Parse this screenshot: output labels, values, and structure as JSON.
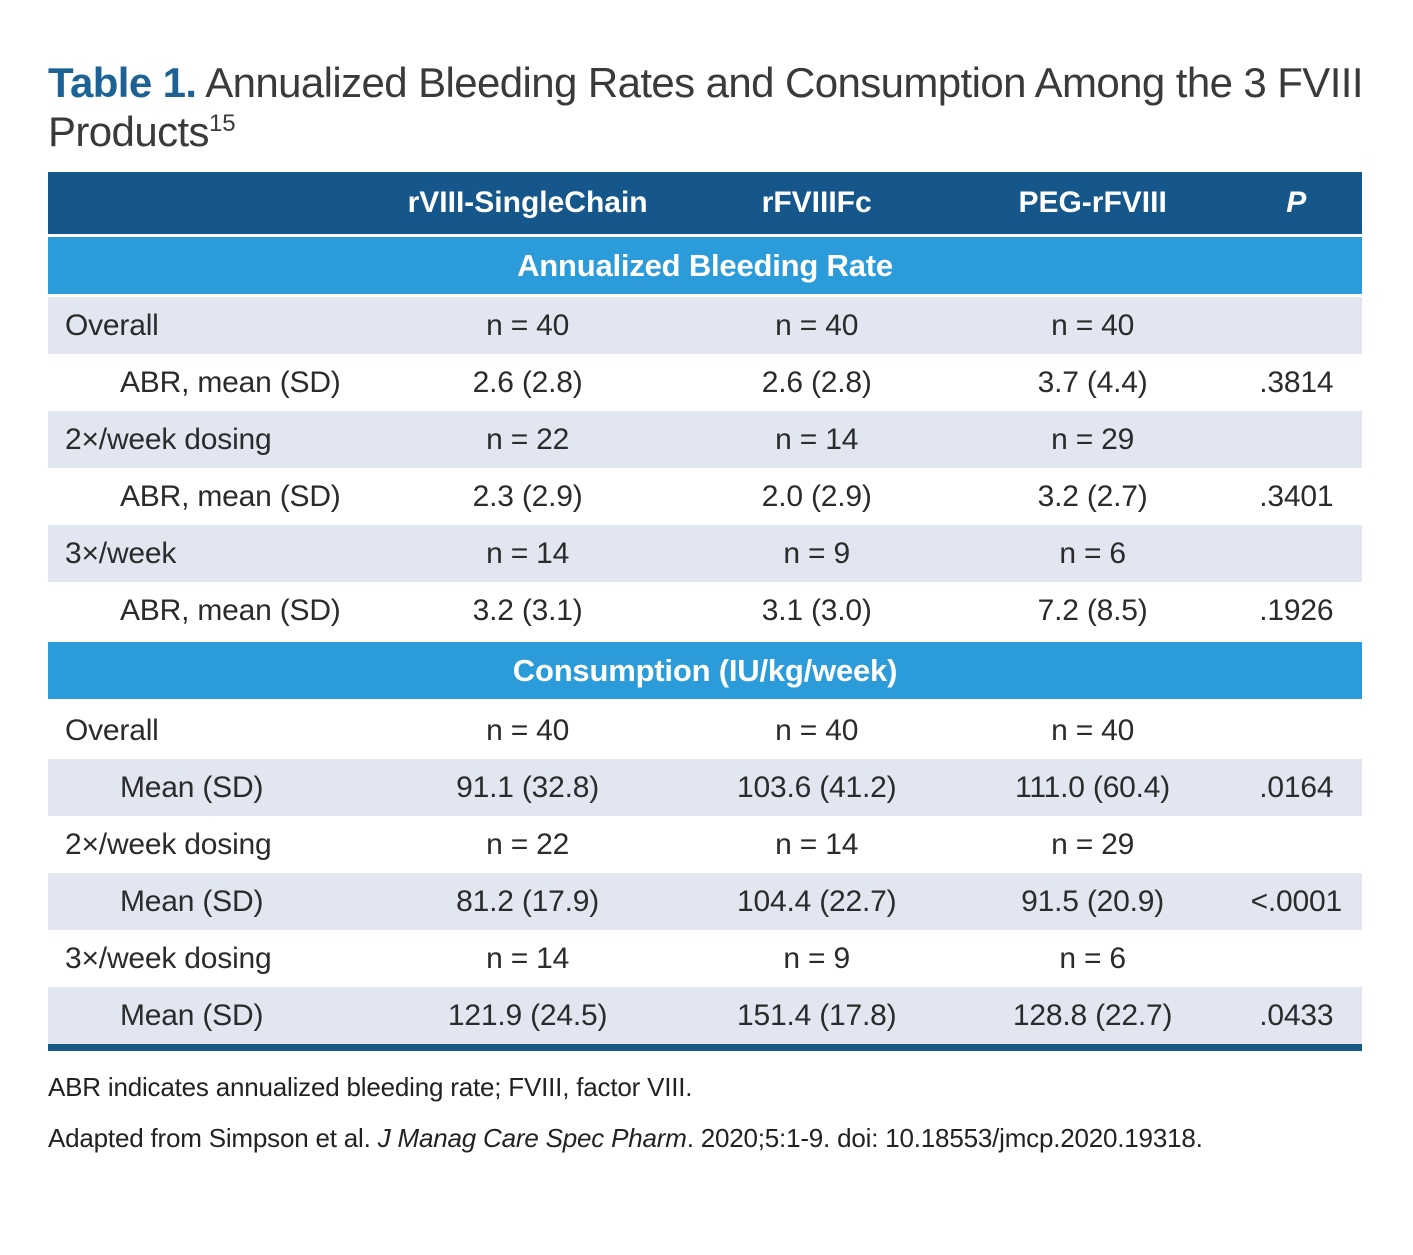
{
  "title": {
    "label": "Table 1.",
    "text": " Annualized Bleeding Rates and Consumption Among the 3 FVIII Products",
    "reference": "15"
  },
  "table": {
    "columns": [
      "",
      "rVIII-SingleChain",
      "rFVIIIFc",
      "PEG-rFVIII",
      "P"
    ],
    "sections": [
      {
        "header": "Annualized Bleeding Rate",
        "rows": [
          {
            "label": "Overall",
            "values": [
              "n = 40",
              "n = 40",
              "n = 40",
              ""
            ]
          },
          {
            "label": "ABR, mean (SD)",
            "values": [
              "2.6 (2.8)",
              "2.6 (2.8)",
              "3.7 (4.4)",
              ".3814"
            ]
          },
          {
            "label": "2×/week dosing",
            "values": [
              "n = 22",
              "n = 14",
              "n = 29",
              ""
            ]
          },
          {
            "label": "ABR, mean (SD)",
            "values": [
              "2.3 (2.9)",
              "2.0 (2.9)",
              "3.2 (2.7)",
              ".3401"
            ]
          },
          {
            "label": "3×/week",
            "values": [
              "n = 14",
              "n = 9",
              "n = 6",
              ""
            ]
          },
          {
            "label": "ABR, mean (SD)",
            "values": [
              "3.2 (3.1)",
              "3.1 (3.0)",
              "7.2 (8.5)",
              ".1926"
            ]
          }
        ]
      },
      {
        "header": "Consumption (IU/kg/week)",
        "rows": [
          {
            "label": "Overall",
            "values": [
              "n = 40",
              "n = 40",
              "n = 40",
              ""
            ]
          },
          {
            "label": "Mean (SD)",
            "values": [
              "91.1 (32.8)",
              "103.6 (41.2)",
              "111.0 (60.4)",
              ".0164"
            ]
          },
          {
            "label": "2×/week dosing",
            "values": [
              "n = 22",
              "n = 14",
              "n = 29",
              ""
            ]
          },
          {
            "label": "Mean (SD)",
            "values": [
              "81.2 (17.9)",
              "104.4 (22.7)",
              "91.5 (20.9)",
              "<.0001"
            ]
          },
          {
            "label": "3×/week dosing",
            "values": [
              "n = 14",
              "n = 9",
              "n = 6",
              ""
            ]
          },
          {
            "label": "Mean (SD)",
            "values": [
              "121.9 (24.5)",
              "151.4 (17.8)",
              "128.8 (22.7)",
              ".0433"
            ]
          }
        ]
      }
    ]
  },
  "footnotes": {
    "abbreviations": "ABR indicates annualized bleeding rate; FVIII, factor VIII.",
    "citation_prefix": "Adapted from Simpson et al. ",
    "citation_journal": "J Manag Care Spec Pharm",
    "citation_suffix": ". 2020;5:1-9. doi: 10.18553/jmcp.2020.19318."
  },
  "colors": {
    "header_navy": "#15578b",
    "section_band_blue": "#2b9cd9",
    "row_shade": "#e1e6f0",
    "title_blue": "#1c6294",
    "bottom_rule": "#175a88",
    "body_text": "#2b2b2b"
  }
}
